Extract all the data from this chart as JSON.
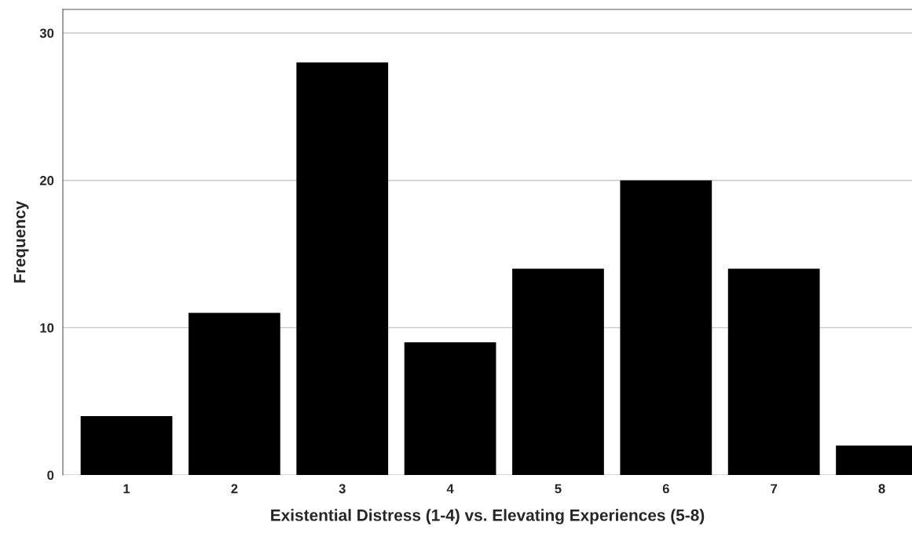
{
  "chart_data": {
    "type": "bar",
    "xlabel": "Existential Distress (1-4) vs. Elevating Experiences (5-8)",
    "ylabel": "Frequency",
    "categories": [
      "1",
      "2",
      "3",
      "4",
      "5",
      "6",
      "7",
      "8"
    ],
    "values": [
      4,
      11,
      28,
      9,
      14,
      20,
      14,
      2
    ],
    "color": "#000000",
    "ylim": [
      0,
      31.6
    ],
    "yticks": [
      0,
      10,
      20,
      30
    ],
    "grid": "y",
    "legend": false
  }
}
